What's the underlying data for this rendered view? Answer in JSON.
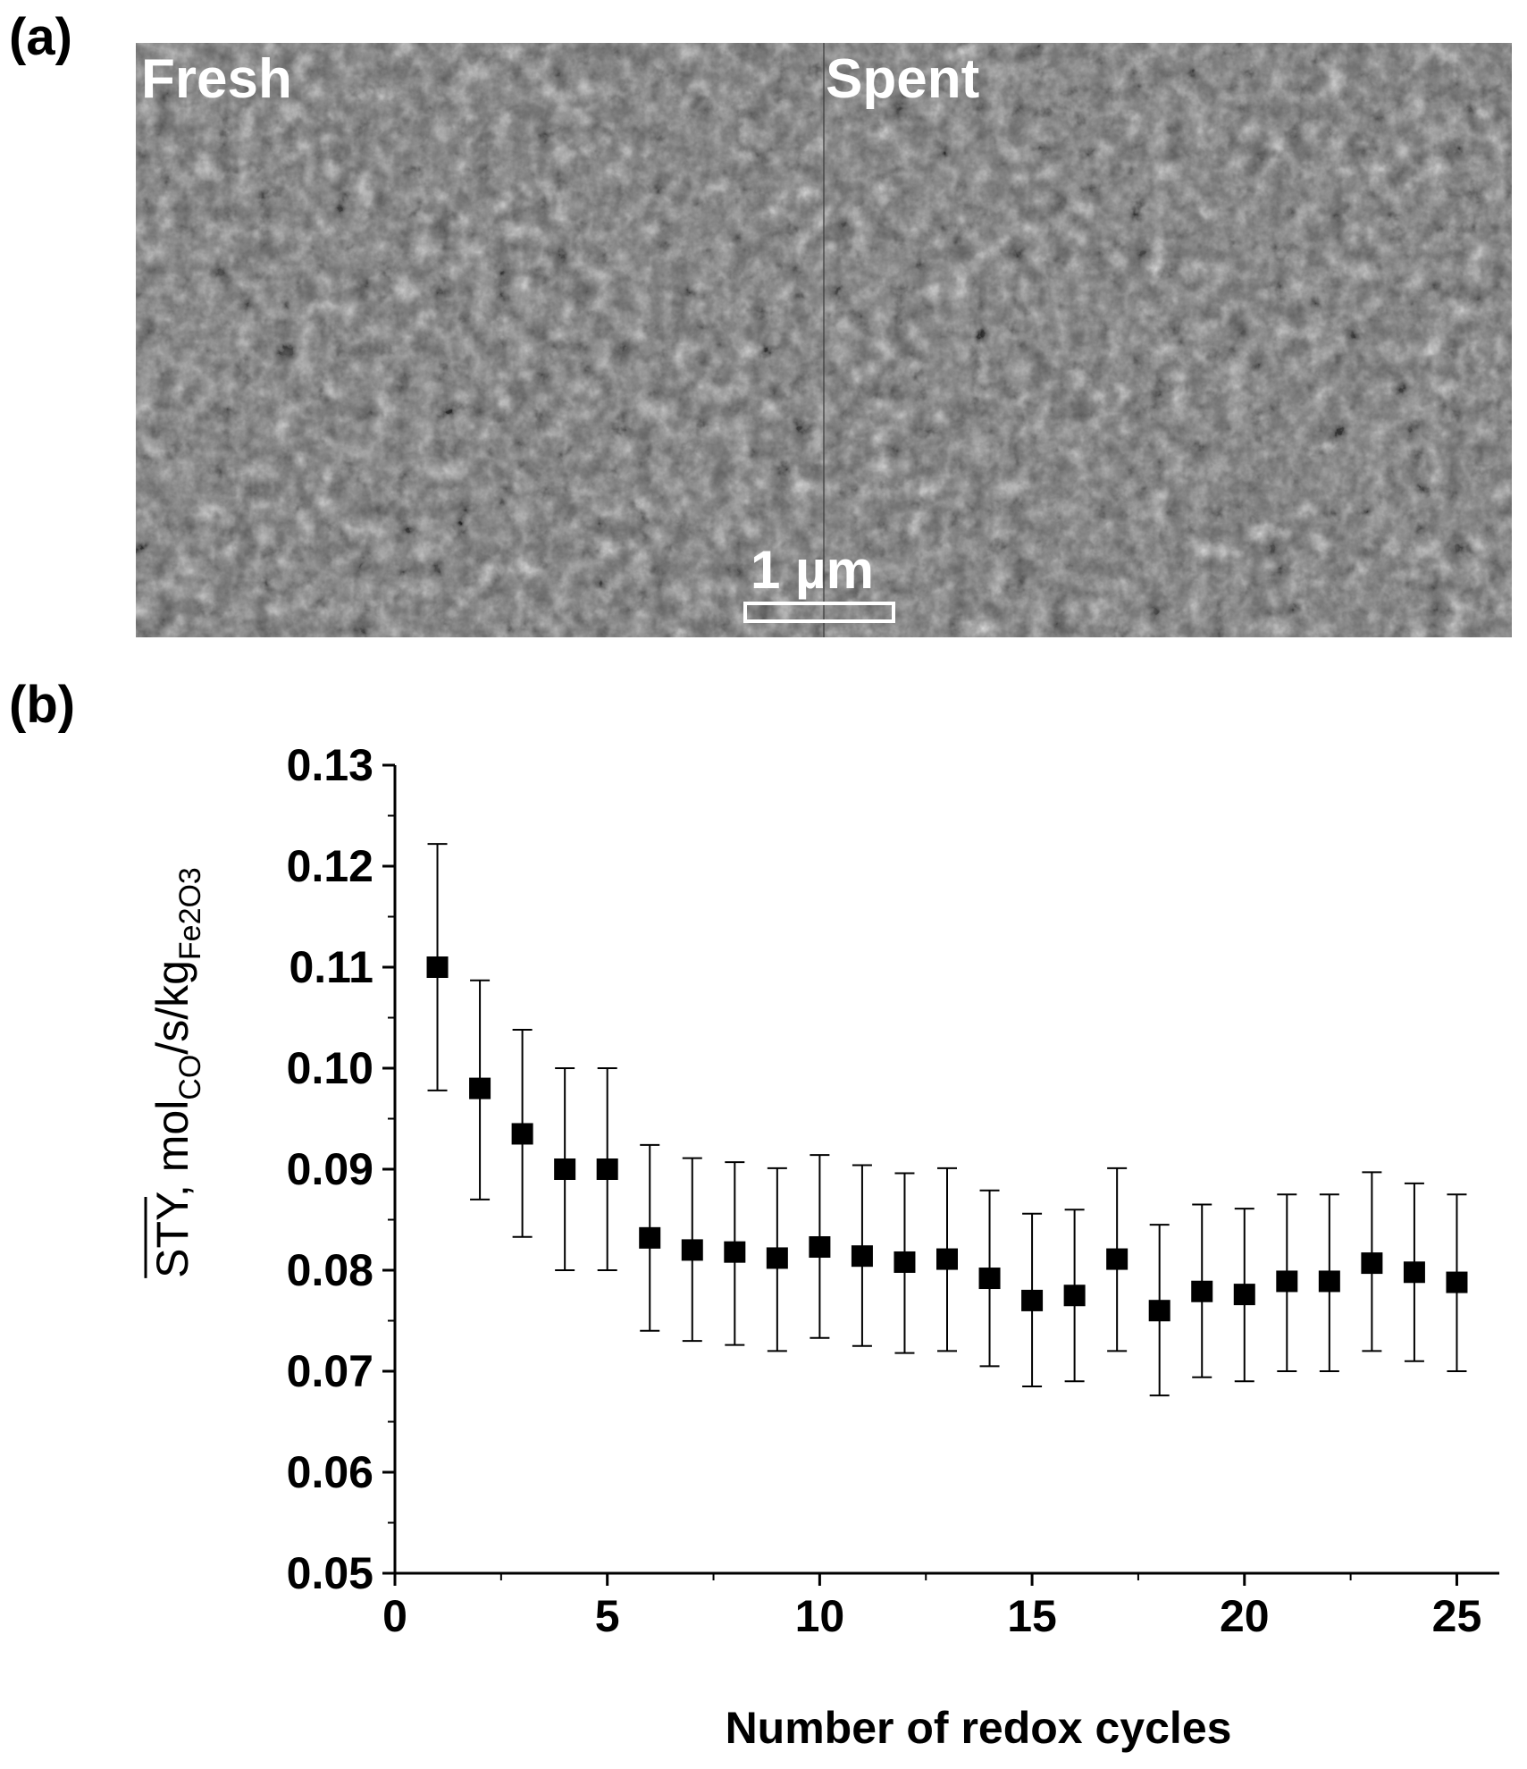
{
  "panels": {
    "a": {
      "letter": "(a)",
      "left_label": "Fresh",
      "right_label": "Spent",
      "scale_bar_label": "1 µm"
    },
    "b": {
      "letter": "(b)"
    }
  },
  "colors": {
    "marker": "#000000",
    "background": "#ffffff",
    "sem_text": "#ffffff"
  },
  "chart_data": {
    "type": "scatter",
    "title": "",
    "xlabel": "Number of redox cycles",
    "ylabel": {
      "main": "STY, mol",
      "sub1": "CO",
      "mid": "/s/kg",
      "sub2": "Fe2O3",
      "overline": true
    },
    "xlim": [
      0,
      26
    ],
    "ylim": [
      0.05,
      0.13
    ],
    "x_ticks": [
      0,
      5,
      10,
      15,
      20,
      25
    ],
    "x_tick_labels": [
      "0",
      "5",
      "10",
      "15",
      "20",
      "25"
    ],
    "y_ticks": [
      0.05,
      0.06,
      0.07,
      0.08,
      0.09,
      0.1,
      0.11,
      0.12,
      0.13
    ],
    "y_tick_labels": [
      "0.05",
      "0.06",
      "0.07",
      "0.08",
      "0.09",
      "0.10",
      "0.11",
      "0.12",
      "0.13"
    ],
    "grid": false,
    "marker": "square",
    "series": [
      {
        "x": [
          1,
          2,
          3,
          4,
          5,
          6,
          7,
          8,
          9,
          10,
          11,
          12,
          13,
          14,
          15,
          16,
          17,
          18,
          19,
          20,
          21,
          22,
          23,
          24,
          25
        ],
        "y": [
          0.11,
          0.098,
          0.0935,
          0.09,
          0.09,
          0.0832,
          0.082,
          0.0818,
          0.0812,
          0.0823,
          0.0814,
          0.0808,
          0.0811,
          0.0792,
          0.077,
          0.0775,
          0.0811,
          0.076,
          0.0779,
          0.0776,
          0.0789,
          0.0789,
          0.0807,
          0.0798,
          0.0788
        ],
        "y_err_low": [
          0.0978,
          0.087,
          0.0833,
          0.08,
          0.08,
          0.074,
          0.073,
          0.0726,
          0.072,
          0.0733,
          0.0725,
          0.0718,
          0.072,
          0.0705,
          0.0685,
          0.069,
          0.072,
          0.0676,
          0.0694,
          0.069,
          0.07,
          0.07,
          0.072,
          0.071,
          0.07
        ],
        "y_err_high": [
          0.1222,
          0.1087,
          0.1038,
          0.1,
          0.1,
          0.0924,
          0.0911,
          0.0907,
          0.0901,
          0.0914,
          0.0904,
          0.0896,
          0.0901,
          0.0879,
          0.0856,
          0.086,
          0.0901,
          0.0845,
          0.0865,
          0.0861,
          0.0875,
          0.0875,
          0.0897,
          0.0886,
          0.0875
        ]
      }
    ]
  }
}
